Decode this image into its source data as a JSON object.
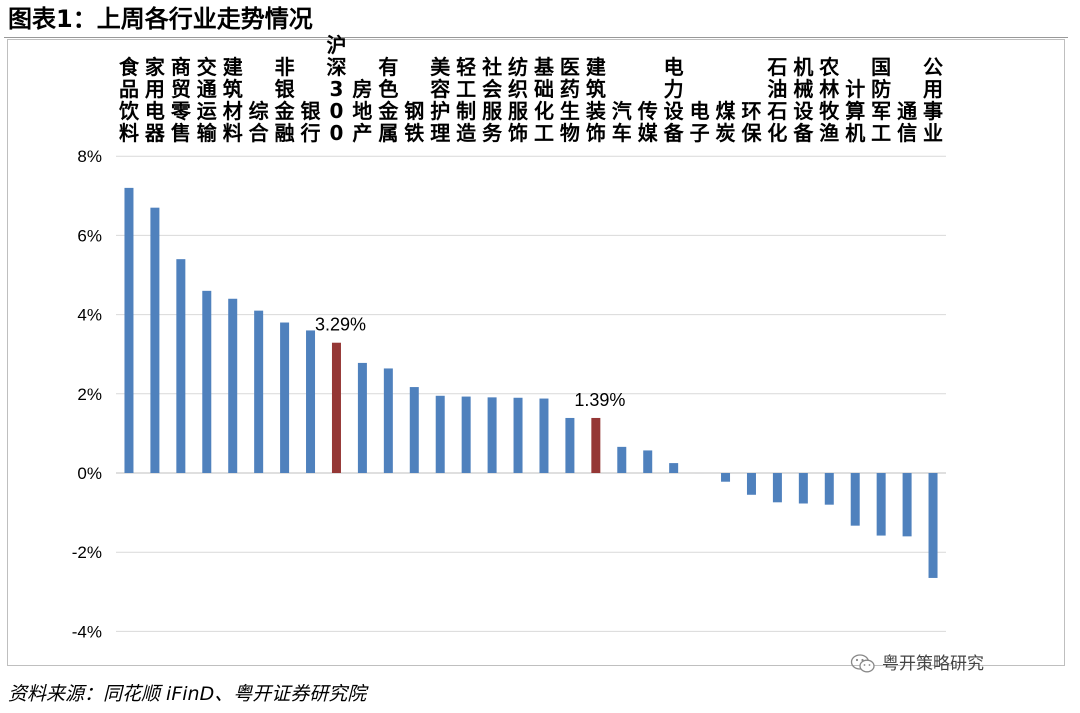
{
  "title": "图表1：上周各行业走势情况",
  "source": "资料来源：同花顺 iFinD、粤开证券研究院",
  "watermark": "粤开策略研究",
  "watermark_icon": "wechat-icon",
  "colors": {
    "bar": "#4f81bd",
    "highlight": "#953735",
    "grid": "#d9d9d9"
  },
  "chart_data": {
    "type": "bar",
    "title": "",
    "xlabel": "",
    "ylabel": "",
    "ylim": [
      -4,
      8
    ],
    "yticks": [
      "8%",
      "6%",
      "4%",
      "2%",
      "0%",
      "-2%",
      "-4%"
    ],
    "ytick_values": [
      8,
      6,
      4,
      2,
      0,
      -2,
      -4
    ],
    "grid": true,
    "legend": "none",
    "categories": [
      "食品饮料",
      "家用电器",
      "商贸零售",
      "交通运输",
      "建筑材料",
      "综合",
      "非银金融",
      "银行",
      "沪深300",
      "房地产",
      "有色金属",
      "钢铁",
      "美容护理",
      "轻工制造",
      "社会服务",
      "纺织服饰",
      "基础化工",
      "医药生物",
      "建筑装饰",
      "汽车",
      "传媒",
      "电力设备",
      "电子",
      "煤炭",
      "环保",
      "石油石化",
      "机械设备",
      "农林牧渔",
      "计算机",
      "国防军工",
      "通信",
      "公用事业"
    ],
    "values": [
      7.2,
      6.7,
      5.4,
      4.6,
      4.4,
      4.1,
      3.8,
      3.6,
      3.29,
      2.78,
      2.64,
      2.17,
      1.95,
      1.93,
      1.91,
      1.9,
      1.88,
      1.39,
      1.39,
      0.66,
      0.57,
      0.25,
      0.0,
      -0.22,
      -0.55,
      -0.74,
      -0.77,
      -0.8,
      -1.33,
      -1.58,
      -1.6,
      -2.65
    ],
    "highlight": [
      "沪深300",
      "建筑装饰"
    ],
    "data_labels": [
      {
        "category": "沪深300",
        "label": "3.29%"
      },
      {
        "category": "建筑装饰",
        "label": "1.39%"
      }
    ]
  }
}
